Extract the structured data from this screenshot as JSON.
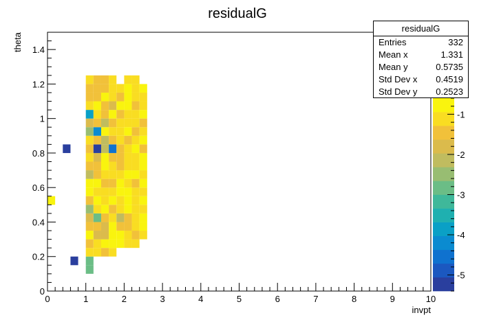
{
  "chart_data": {
    "type": "heatmap",
    "title": "residualG",
    "xlabel": "invpt",
    "ylabel": "theta",
    "xlim": [
      0,
      10
    ],
    "ylim": [
      0,
      1.5
    ],
    "x_ticks": [
      "0",
      "1",
      "2",
      "3",
      "4",
      "5",
      "6",
      "7",
      "8",
      "9",
      "10"
    ],
    "y_ticks": [
      "0",
      "0.2",
      "0.4",
      "0.6",
      "0.8",
      "1",
      "1.2",
      "1.4"
    ],
    "z_range": [
      -5.4,
      -0.6
    ],
    "z_ticks": [
      "-1",
      "-2",
      "-3",
      "-4",
      "-5"
    ],
    "bin_width_x": 0.2,
    "bin_width_y": 0.05,
    "bin_x_start": 1.0,
    "bin_y_start": 0.1,
    "bins_z_rows_from_y_0_1": [
      [
        -2.9,
        null,
        null,
        null,
        null,
        null,
        null,
        null
      ],
      [
        -2.9,
        null,
        null,
        null,
        null,
        null,
        null,
        null
      ],
      [
        -1.2,
        -1.0,
        -1.3,
        -1.1,
        null,
        null,
        null,
        null
      ],
      [
        -1.3,
        -1.2,
        -0.9,
        -0.7,
        -0.9,
        -1.0,
        -1.1,
        null
      ],
      [
        -0.8,
        -1.9,
        -1.9,
        -0.8,
        -0.6,
        -1.2,
        -1.3,
        -1.1
      ],
      [
        -1.4,
        -1.6,
        -1.7,
        -0.9,
        -1.5,
        -1.3,
        -1.1,
        -0.8
      ],
      [
        -1.7,
        -2.9,
        -1.4,
        -1.1,
        -2.1,
        -1.3,
        -1.0,
        -0.9
      ],
      [
        -2.4,
        -1.1,
        -0.9,
        -1.4,
        -1.1,
        -0.8,
        -1.0,
        -1.2
      ],
      [
        -1.3,
        -0.9,
        -1.2,
        -0.8,
        -1.0,
        -0.7,
        -1.1,
        -0.9
      ],
      [
        -0.8,
        -1.0,
        -1.1,
        -1.0,
        -0.9,
        -0.8,
        -1.2,
        -1.0
      ],
      [
        -0.9,
        -0.8,
        -1.3,
        -1.4,
        -0.9,
        -1.1,
        -1.3,
        -0.9
      ],
      [
        -2.0,
        -1.4,
        -1.0,
        -1.2,
        -1.0,
        -0.8,
        -0.9,
        -1.1
      ],
      [
        -1.6,
        -1.3,
        -0.9,
        -1.2,
        -1.3,
        -1.0,
        -1.2,
        -0.9
      ],
      [
        -1.1,
        -1.9,
        -0.7,
        -1.3,
        -1.4,
        -1.0,
        -1.2,
        -0.8
      ],
      [
        -1.4,
        -5.2,
        -2.1,
        -4.6,
        -1.6,
        -1.2,
        -0.9,
        -1.3
      ],
      [
        -1.0,
        -1.6,
        -2.3,
        -1.3,
        -1.1,
        -1.4,
        -1.0,
        -0.9
      ],
      [
        -2.6,
        -4.3,
        -0.9,
        -1.1,
        -1.2,
        -0.8,
        -1.3,
        -1.0
      ],
      [
        -1.8,
        -1.4,
        -2.1,
        -1.4,
        -1.0,
        -1.2,
        -1.1,
        -1.3
      ],
      [
        -4.0,
        -1.1,
        -1.4,
        -0.9,
        -1.3,
        -1.0,
        -1.2,
        -0.8
      ],
      [
        -1.2,
        -0.8,
        -1.3,
        -1.7,
        -0.9,
        -0.9,
        -1.4,
        -1.1
      ],
      [
        -1.4,
        -1.6,
        -0.8,
        -1.1,
        -1.4,
        -0.9,
        -1.0,
        -1.2
      ],
      [
        -1.3,
        -1.6,
        -1.4,
        -1.2,
        -1.0,
        -0.8,
        -1.1,
        -0.9
      ],
      [
        -1.0,
        -1.3,
        -1.4,
        -1.1,
        null,
        -1.0,
        -1.0,
        null
      ]
    ],
    "extra_bins": [
      {
        "x": 0.0,
        "y": 0.5,
        "z": -0.9
      },
      {
        "x": 0.4,
        "y": 0.8,
        "z": -5.1
      },
      {
        "x": 0.6,
        "y": 0.15,
        "z": -5.2
      }
    ]
  },
  "stats": {
    "title": "residualG",
    "rows": [
      {
        "key": "Entries",
        "value": "332"
      },
      {
        "key": "Mean x",
        "value": "1.331"
      },
      {
        "key": "Mean y",
        "value": "0.5735"
      },
      {
        "key": "Std Dev x",
        "value": "0.4519"
      },
      {
        "key": "Std Dev y",
        "value": "0.2523"
      }
    ]
  },
  "colors": {
    "palette": [
      "#2a3f9e",
      "#1b58c0",
      "#0f72cf",
      "#0b8bd0",
      "#0aa0c6",
      "#1fb0b0",
      "#3fb89a",
      "#6bbd86",
      "#98bd72",
      "#c0bc5f",
      "#dbbb4c",
      "#f1c13a",
      "#f9dd22",
      "#f9f40e"
    ]
  }
}
